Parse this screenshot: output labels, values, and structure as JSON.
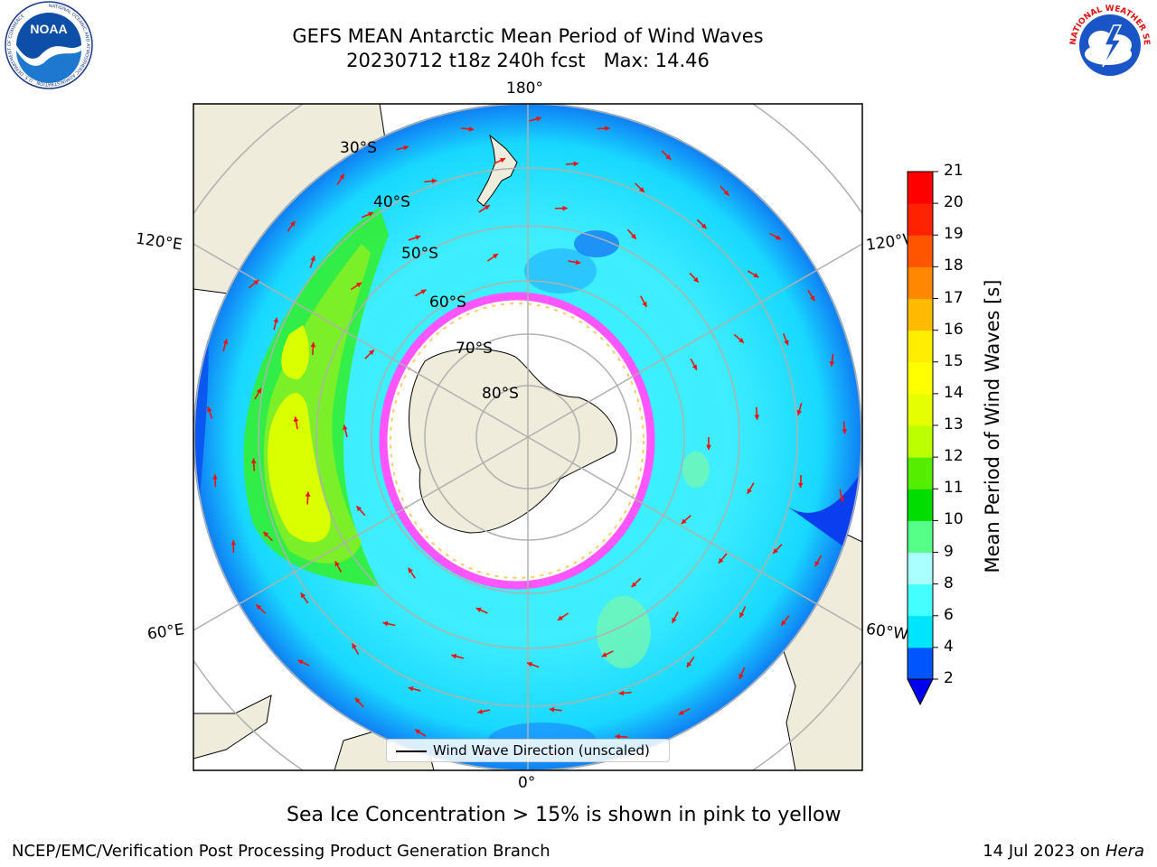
{
  "title": {
    "line1": "GEFS MEAN Antarctic Mean Period of Wind Waves",
    "line2": "20230712 t18z 240h fcst   Max: 14.46"
  },
  "logos": {
    "left": "NOAA",
    "left_ring_text": "NATIONAL OCEANIC AND ATMOSPHERIC ADMINISTRATION · U.S. DEPARTMENT OF COMMERCE",
    "right_ring_text": "NATIONAL WEATHER SERVICE"
  },
  "map": {
    "longitude_labels": [
      "180°",
      "120°E",
      "120°W",
      "60°E",
      "60°W",
      "0°"
    ],
    "latitude_labels": [
      "30°S",
      "40°S",
      "50°S",
      "60°S",
      "70°S",
      "80°S"
    ],
    "legend_label": "Wind Wave Direction (unscaled)",
    "colors": {
      "land": "#efecdc",
      "ice_edge": "#ff55ff",
      "arrow": "#ee1111"
    }
  },
  "colorbar": {
    "title": "Mean Period of Wind Waves [s]",
    "ticks": [
      "2",
      "4",
      "6",
      "8",
      "9",
      "10",
      "11",
      "12",
      "13",
      "14",
      "15",
      "16",
      "17",
      "18",
      "19",
      "20",
      "21"
    ],
    "colors": [
      "#0055ff",
      "#00e5ff",
      "#44ffff",
      "#aaffff",
      "#55ff88",
      "#00dd00",
      "#55ee00",
      "#bbff00",
      "#e5ff00",
      "#ffff00",
      "#ffee00",
      "#ffbb00",
      "#ff8800",
      "#ff5500",
      "#ff2200",
      "#ff0000"
    ],
    "extend_color": "#0000ee"
  },
  "caption": "Sea Ice Concentration > 15% is shown in pink to yellow",
  "footer": {
    "left": "NCEP/EMC/Verification Post Processing Product Generation Branch",
    "right_prefix": "14 Jul 2023 on ",
    "right_italic": "Hera"
  }
}
